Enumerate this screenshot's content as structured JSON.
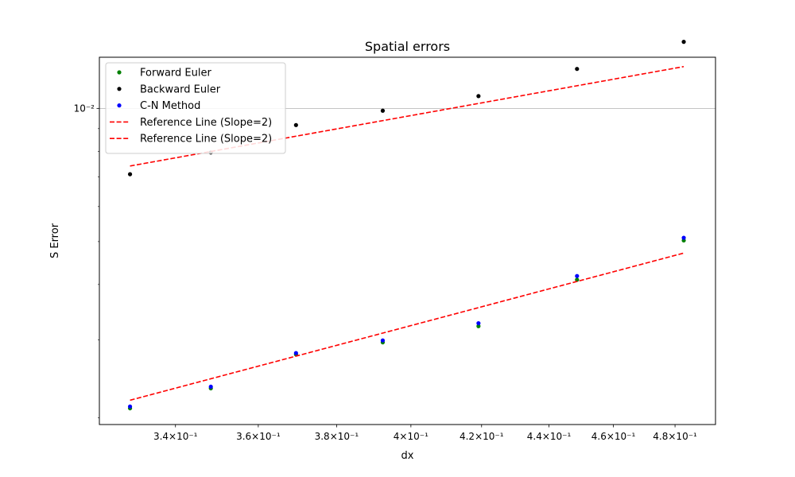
{
  "chart_data": {
    "type": "scatter",
    "title": "Spatial errors",
    "xlabel": "dx",
    "ylabel": "S Error",
    "x_scale": "log",
    "y_scale": "log",
    "xlim": [
      0.3226,
      0.4936
    ],
    "ylim": [
      0.00193,
      0.01305
    ],
    "x_ticks": [
      {
        "value": 0.34,
        "label": "3.4×10⁻¹"
      },
      {
        "value": 0.36,
        "label": "3.6×10⁻¹"
      },
      {
        "value": 0.38,
        "label": "3.8×10⁻¹"
      },
      {
        "value": 0.4,
        "label": "4×10⁻¹"
      },
      {
        "value": 0.42,
        "label": "4.2×10⁻¹"
      },
      {
        "value": 0.44,
        "label": "4.4×10⁻¹"
      },
      {
        "value": 0.46,
        "label": "4.6×10⁻¹"
      },
      {
        "value": 0.48,
        "label": "4.8×10⁻¹"
      }
    ],
    "y_major_ticks": [
      {
        "value": 0.01,
        "label": "10⁻²"
      }
    ],
    "y_minor_ticks": [
      0.002,
      0.003,
      0.004,
      0.005,
      0.006,
      0.007,
      0.008,
      0.009
    ],
    "grid": "y-major",
    "legend": "top-left",
    "series": [
      {
        "name": "Forward Euler",
        "kind": "points",
        "color": "#008000",
        "x": [
          0.3295,
          0.3484,
          0.3695,
          0.3923,
          0.4191,
          0.4486,
          0.4829
        ],
        "y": [
          0.0021,
          0.00233,
          0.00278,
          0.00296,
          0.00322,
          0.0041,
          0.00503
        ]
      },
      {
        "name": "Backward Euler",
        "kind": "points",
        "color": "#000000",
        "x": [
          0.3295,
          0.3484,
          0.3695,
          0.3923,
          0.4191,
          0.4486,
          0.4829
        ],
        "y": [
          0.0071,
          0.00795,
          0.00917,
          0.00988,
          0.01066,
          0.01228,
          0.01414
        ]
      },
      {
        "name": "C-N Method",
        "kind": "points",
        "color": "#0000ff",
        "x": [
          0.3295,
          0.3484,
          0.3695,
          0.3923,
          0.4191,
          0.4486,
          0.4829
        ],
        "y": [
          0.00212,
          0.00235,
          0.0028,
          0.00299,
          0.00327,
          0.00418,
          0.0051
        ]
      },
      {
        "name": "Reference Line (Slope=2)",
        "kind": "dashed-line",
        "color": "#ff0000",
        "x": [
          0.3295,
          0.4829
        ],
        "y": [
          0.00741,
          0.01243
        ]
      },
      {
        "name": "Reference Line (Slope=2)",
        "kind": "dashed-line",
        "color": "#ff0000",
        "x": [
          0.3295,
          0.4829
        ],
        "y": [
          0.00219,
          0.00471
        ]
      }
    ]
  }
}
